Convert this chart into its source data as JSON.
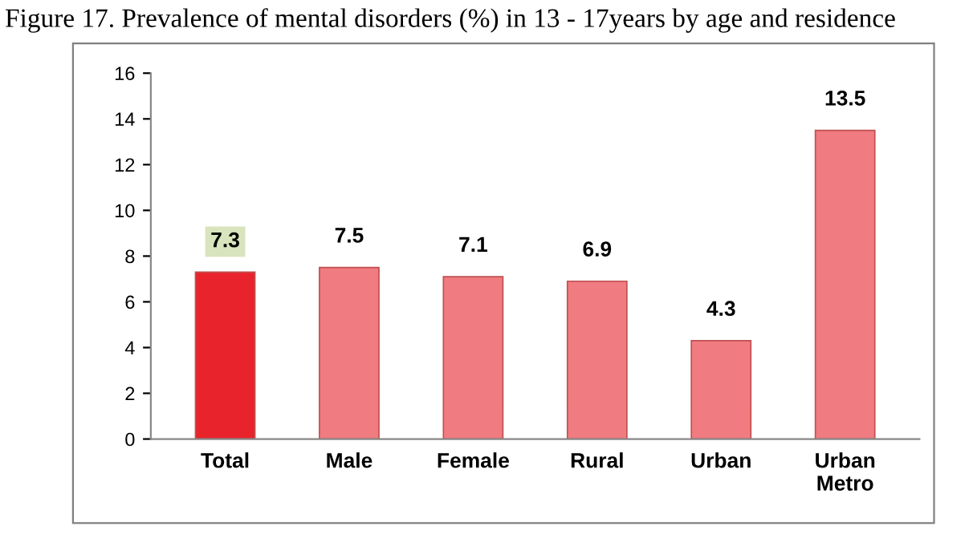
{
  "chart_data": {
    "type": "bar",
    "title": "Figure 17. Prevalence of mental disorders (%) in 13 - 17years by age and residence",
    "categories": [
      "Total",
      "Male",
      "Female",
      "Rural",
      "Urban",
      "Urban\nMetro"
    ],
    "values": [
      7.3,
      7.5,
      7.1,
      6.9,
      4.3,
      13.5
    ],
    "colors": [
      "#e8232b",
      "#f07b80",
      "#f07b80",
      "#f07b80",
      "#f07b80",
      "#f07b80"
    ],
    "ylim": [
      0,
      16
    ],
    "yticks": [
      0,
      2,
      4,
      6,
      8,
      10,
      12,
      14,
      16
    ],
    "grid": false,
    "data_labels": true,
    "legend": false
  }
}
